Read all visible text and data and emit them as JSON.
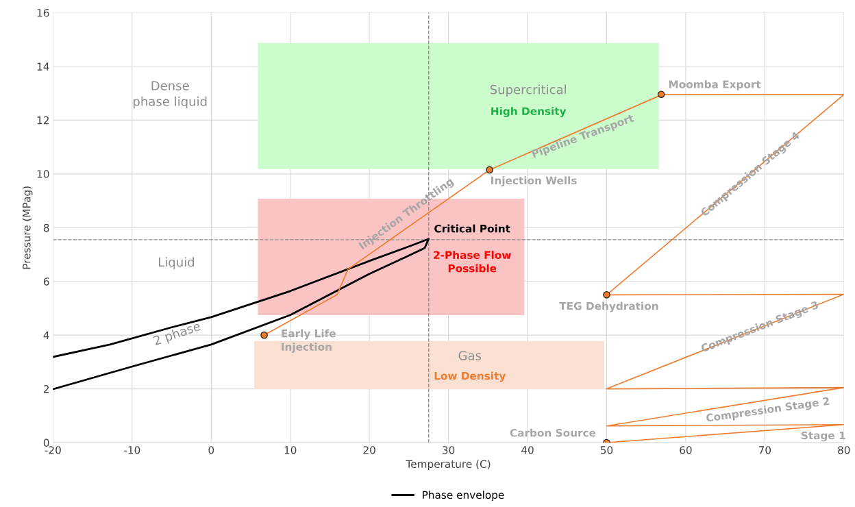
{
  "chart_data": {
    "type": "line",
    "xlabel": "Temperature (C)",
    "ylabel": "Pressure (MPag)",
    "xlim": [
      -20,
      80
    ],
    "xticks": [
      -20,
      -10,
      0,
      10,
      20,
      30,
      40,
      50,
      60,
      70,
      80
    ],
    "ylim": [
      0,
      16
    ],
    "yticks": [
      0,
      2,
      4,
      6,
      8,
      10,
      12,
      14,
      16
    ],
    "grid": true,
    "legend": "bottom",
    "series": [
      {
        "type": "area",
        "color": "#ccfccc",
        "x": [
          5.9,
          56.6,
          56.6,
          5.9
        ],
        "values": [
          14.87,
          14.87,
          10.18,
          10.18
        ]
      },
      {
        "type": "area",
        "color": "#fbc4c4",
        "x": [
          5.9,
          39.6,
          39.6,
          5.9
        ],
        "values": [
          9.08,
          9.08,
          4.74,
          4.74
        ]
      },
      {
        "type": "area",
        "color": "#f9e0d2",
        "x": [
          5.45,
          49.7,
          49.7,
          5.45
        ],
        "values": [
          3.78,
          3.78,
          1.99,
          1.99
        ]
      },
      {
        "name": "Phase envelope",
        "color": "#000000",
        "marker": "none",
        "x": [
          -20,
          -10,
          0,
          10,
          20,
          25,
          27,
          27.5,
          25,
          20,
          10,
          0,
          -5,
          -12.8,
          -20
        ],
        "values": [
          1.99,
          2.83,
          3.65,
          4.75,
          6.28,
          6.96,
          7.24,
          7.58,
          7.3,
          6.76,
          5.64,
          4.67,
          4.29,
          3.65,
          3.19
        ]
      },
      {
        "color": "#ed7d31",
        "marker": "none",
        "x": [
          50,
          80,
          50,
          80,
          50,
          80,
          50,
          80,
          57,
          35.2,
          17.3,
          15.9,
          6.7
        ],
        "values": [
          0,
          0.67,
          0.62,
          2.05,
          2.0,
          5.52,
          5.5,
          12.95,
          12.95,
          10.15,
          6.45,
          5.5,
          4.0
        ]
      },
      {
        "type": "scatter",
        "color": "#ed7d31",
        "marker": "circle",
        "x": [
          6.7,
          35.2,
          56.9,
          50,
          50
        ],
        "values": [
          4.0,
          10.15,
          12.96,
          5.5,
          0
        ]
      }
    ],
    "ref_lines": [
      {
        "axis": "x",
        "value": 27.5,
        "color": "#909090",
        "line_style": "dashed"
      },
      {
        "axis": "y",
        "value": 7.55,
        "color": "#909090",
        "line_style": "dashed"
      }
    ],
    "annotations": [
      "Dense\nphase liquid",
      "Supercritical",
      "High Density",
      "Liquid",
      "2 phase",
      {
        "text": "Critical Point",
        "x": 27.5,
        "y": 7.55
      },
      "2-Phase Flow\nPossible",
      "Gas",
      "Low Density",
      {
        "text": "Early Life\nInjection",
        "x": 6.7,
        "y": 4.0
      },
      {
        "text": "Injection Wells",
        "x": 35.2,
        "y": 10.15
      },
      {
        "text": "Moomba Export",
        "x": 56.9,
        "y": 12.96
      },
      {
        "text": "TEG Dehydration",
        "x": 50,
        "y": 5.5
      },
      {
        "text": "Carbon Source",
        "x": 50,
        "y": 0
      },
      "Pipeline Transport",
      "Injection Throttling",
      {
        "text": "Compression Stage 4",
        "x": 68.2,
        "y": 9.97
      },
      {
        "text": "Compression Stage 3",
        "x": 69.4,
        "y": 4.29
      },
      "Compression Stage 2",
      "Stage 1"
    ]
  }
}
